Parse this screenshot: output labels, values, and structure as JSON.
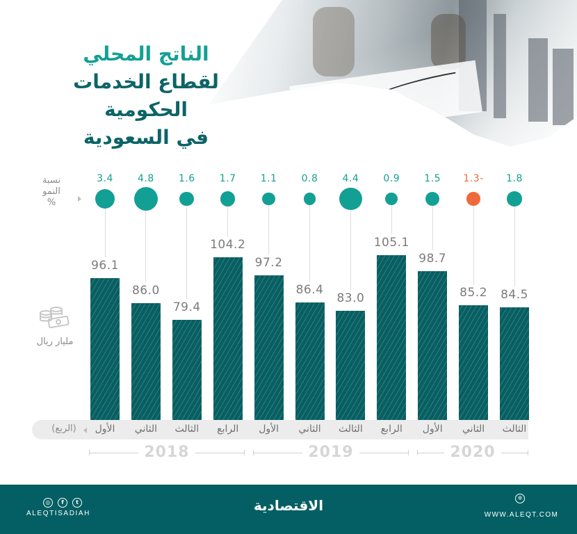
{
  "title": {
    "line1": "الناتج المحلي",
    "line2": "لقطاع الخدمات الحكومية",
    "line3": "في السعودية"
  },
  "growth_legend": {
    "line1": "نسبة",
    "line2": "النمو",
    "line3": "%"
  },
  "unit_label": "مليار ريال",
  "quarter_axis_label": "(الربع)",
  "colors": {
    "bar": "#075f62",
    "growth_positive": "#13a094",
    "growth_negative": "#ef6a3a",
    "title_accent": "#13a094",
    "title_main": "#0d6467",
    "footer_bg": "#035f63"
  },
  "chart_data": {
    "type": "bar",
    "title": "الناتج المحلي لقطاع الخدمات الحكومية في السعودية",
    "ylabel": "مليار ريال",
    "xlabel": "(الربع)",
    "categories": [
      "2018 الأول",
      "2018 الثاني",
      "2018 الثالث",
      "2018 الرابع",
      "2019 الأول",
      "2019 الثاني",
      "2019 الثالث",
      "2019 الرابع",
      "2020 الأول",
      "2020 الثاني",
      "2020 الثالث"
    ],
    "series": [
      {
        "name": "الناتج المحلي (مليار ريال)",
        "values": [
          96.1,
          86.0,
          79.4,
          104.2,
          97.2,
          86.4,
          83.0,
          105.1,
          98.7,
          85.2,
          84.5
        ]
      },
      {
        "name": "نسبة النمو %",
        "values": [
          3.4,
          4.8,
          1.6,
          1.7,
          1.1,
          0.8,
          4.4,
          0.9,
          1.5,
          -1.3,
          1.8
        ]
      }
    ],
    "bars": [
      {
        "quarter": "الأول",
        "year": "2018",
        "value": "96.1",
        "growth": "3.4",
        "neg": false
      },
      {
        "quarter": "الثاني",
        "year": "2018",
        "value": "86.0",
        "growth": "4.8",
        "neg": false
      },
      {
        "quarter": "الثالث",
        "year": "2018",
        "value": "79.4",
        "growth": "1.6",
        "neg": false
      },
      {
        "quarter": "الرابع",
        "year": "2018",
        "value": "104.2",
        "growth": "1.7",
        "neg": false
      },
      {
        "quarter": "الأول",
        "year": "2019",
        "value": "97.2",
        "growth": "1.1",
        "neg": false
      },
      {
        "quarter": "الثاني",
        "year": "2019",
        "value": "86.4",
        "growth": "0.8",
        "neg": false
      },
      {
        "quarter": "الثالث",
        "year": "2019",
        "value": "83.0",
        "growth": "4.4",
        "neg": false
      },
      {
        "quarter": "الرابع",
        "year": "2019",
        "value": "105.1",
        "growth": "0.9",
        "neg": false
      },
      {
        "quarter": "الأول",
        "year": "2020",
        "value": "98.7",
        "growth": "1.5",
        "neg": false
      },
      {
        "quarter": "الثاني",
        "year": "2020",
        "value": "85.2",
        "growth": "1.3-",
        "neg": true
      },
      {
        "quarter": "الثالث",
        "year": "2020",
        "value": "84.5",
        "growth": "1.8",
        "neg": false
      }
    ],
    "years": [
      "2018",
      "2019",
      "2020"
    ],
    "grid": false,
    "legend_position": "left"
  },
  "footer": {
    "social_handle": "ALEQTISADIAH",
    "logo_text": "الاقتصادية",
    "website": "WWW.ALEQT.COM",
    "social_icons": [
      "instagram-icon",
      "facebook-icon",
      "twitter-icon"
    ]
  }
}
